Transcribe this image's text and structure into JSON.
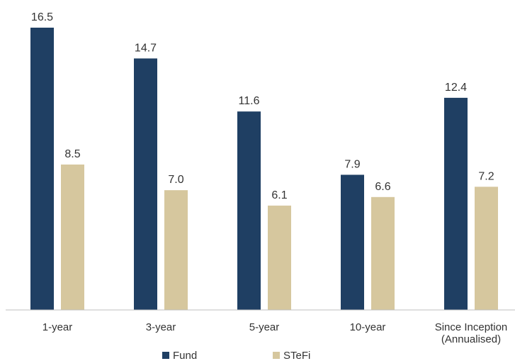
{
  "chart_data": {
    "type": "bar",
    "categories": [
      [
        "1-year"
      ],
      [
        "3-year"
      ],
      [
        "5-year"
      ],
      [
        "10-year"
      ],
      [
        "Since Inception",
        "(Annualised)"
      ]
    ],
    "series": [
      {
        "name": "Fund",
        "values": [
          16.5,
          14.7,
          11.6,
          7.9,
          12.4
        ],
        "labels": [
          "16.5",
          "14.7",
          "11.6",
          "7.9",
          "12.4"
        ],
        "color": "#1f3f63"
      },
      {
        "name": "STeFi",
        "values": [
          8.5,
          7.0,
          6.1,
          6.6,
          7.2
        ],
        "labels": [
          "8.5",
          "7.0",
          "6.1",
          "6.6",
          "7.2"
        ],
        "color": "#d6c79e"
      }
    ],
    "ylim": [
      0,
      16.5
    ],
    "grid": false,
    "legend": "bottom-center",
    "axis_color": "#bfbfbf"
  }
}
